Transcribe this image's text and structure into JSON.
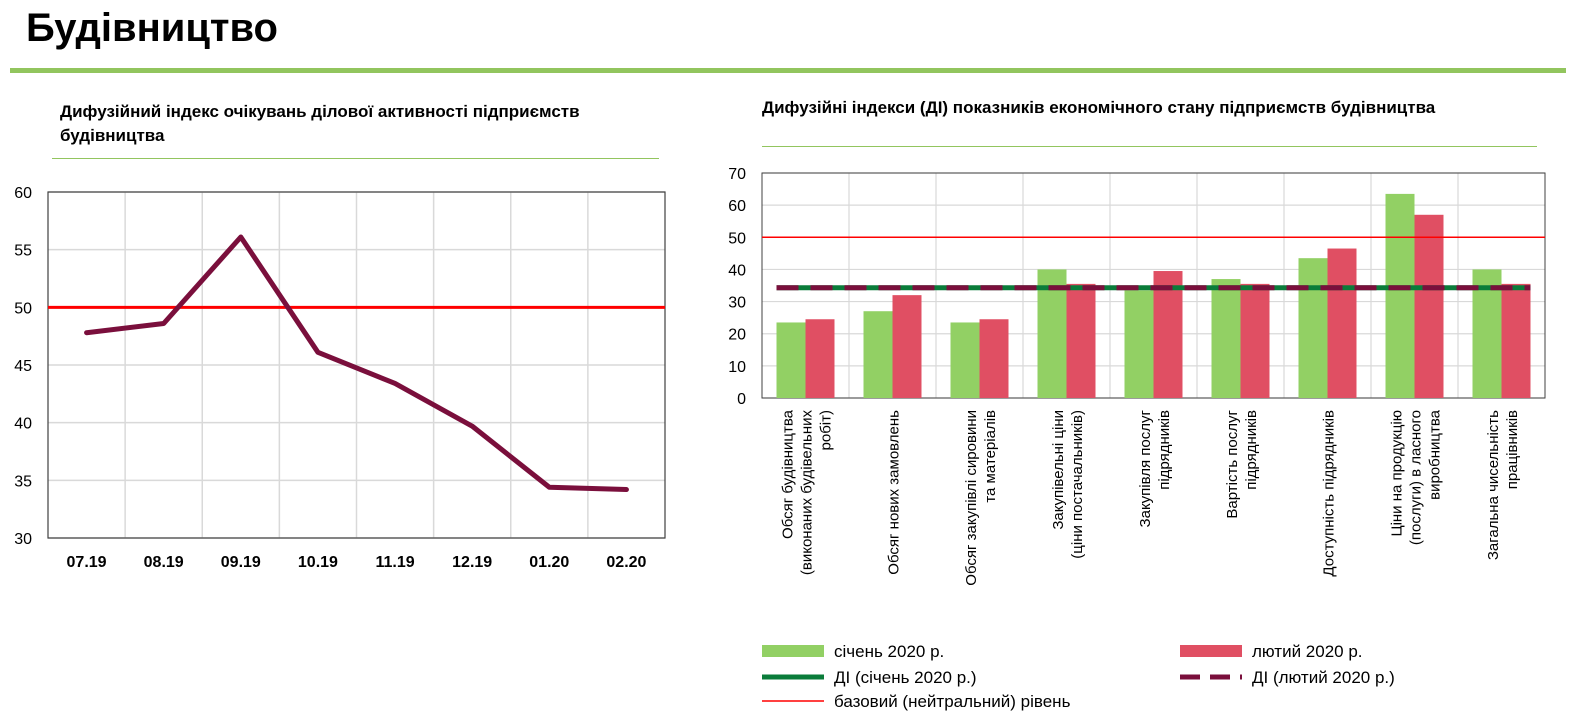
{
  "page": {
    "title": "Будівництво"
  },
  "colors": {
    "accent_green": "#92c55e",
    "line_maroon": "#7a0f3c",
    "neutral_red": "#ff0000",
    "bar_jan": "#92d064",
    "bar_feb": "#e04f63",
    "di_jan": "#0a7c3a",
    "di_feb": "#7a0f3c"
  },
  "chart_data": [
    {
      "type": "line",
      "title": "Дифузійний  індекс очікувань ділової активності підприємств  будівництва",
      "categories": [
        "07.19",
        "08.19",
        "09.19",
        "10.19",
        "11.19",
        "12.19",
        "01.20",
        "02.20"
      ],
      "series": [
        {
          "values": [
            47.8,
            48.6,
            56.1,
            46.1,
            43.4,
            39.7,
            34.4,
            34.2
          ]
        }
      ],
      "reference_line": 50,
      "ylim": [
        30,
        60
      ],
      "yticks": [
        30,
        35,
        40,
        45,
        50,
        55,
        60
      ],
      "grid": true
    },
    {
      "type": "bar",
      "title": "Дифузійні  індекси (ДІ)  показників економічного  стану  підприємств будівництва",
      "categories": [
        [
          "Обсяг будівництва",
          "(виконаних будівельних",
          "робіт)"
        ],
        [
          "Обсяг нових замовлень"
        ],
        [
          "Обсяг закупівлі сировини",
          "та матеріалів"
        ],
        [
          "Закупівельні ціни",
          "(ціни постачальників)"
        ],
        [
          "Закупівля послуг",
          "підрядників"
        ],
        [
          "Вартість послуг",
          "підрядників"
        ],
        [
          "Доступність підрядників"
        ],
        [
          "Ціни на продукцію",
          "(послуги) в ласного",
          "виробництва"
        ],
        [
          "Загальна  чисельність",
          "працівників"
        ]
      ],
      "series": [
        {
          "name": "січень 2020 р.",
          "values": [
            23.5,
            27,
            23.5,
            40,
            33.5,
            37,
            43.5,
            63.5,
            40
          ]
        },
        {
          "name": "лютий 2020 р.",
          "values": [
            24.5,
            32,
            24.5,
            35.5,
            39.5,
            35.5,
            46.5,
            57,
            35.5
          ]
        }
      ],
      "di_lines": [
        {
          "name": "ДІ (січень 2020 р.)",
          "value": 34.3
        },
        {
          "name": "ДІ (лютий 2020 р.)",
          "value": 34.3
        }
      ],
      "reference_line": {
        "name": "базовий (нейтральний) рівень",
        "value": 50
      },
      "ylim": [
        0,
        70
      ],
      "yticks": [
        0,
        10,
        20,
        30,
        40,
        50,
        60,
        70
      ],
      "grid": true,
      "legend_position": "bottom"
    }
  ]
}
